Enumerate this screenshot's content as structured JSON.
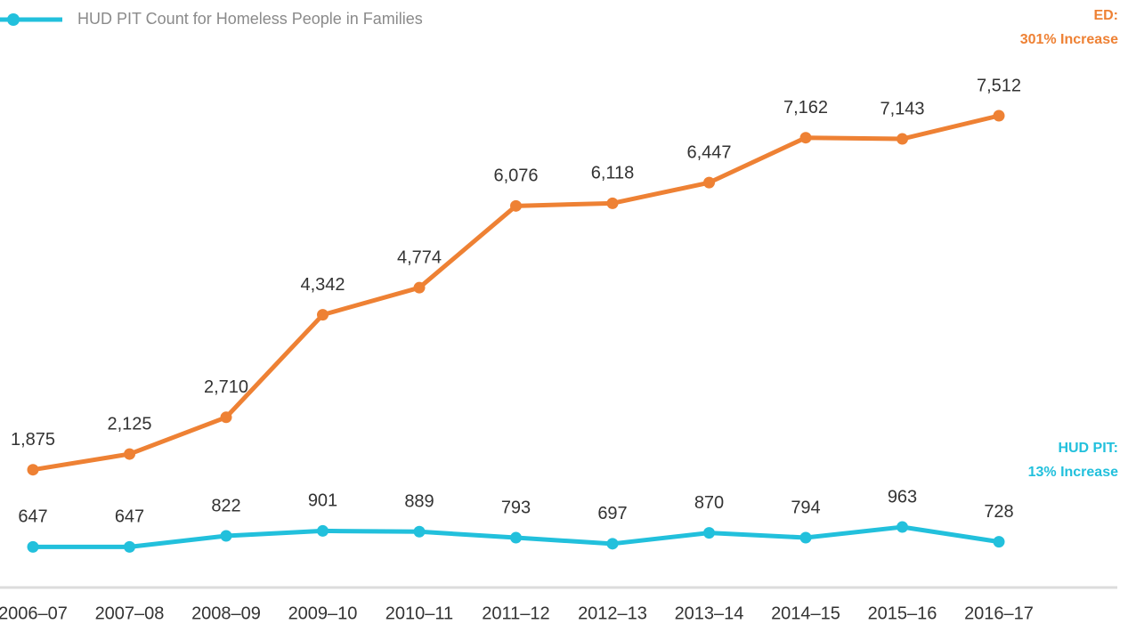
{
  "chart_data": {
    "type": "line",
    "categories": [
      "2006–07",
      "2007–08",
      "2008–09",
      "2009–10",
      "2010–11",
      "2011–12",
      "2012–13",
      "2013–14",
      "2014–15",
      "2015–16",
      "2016–17"
    ],
    "series": [
      {
        "color": "#ee8134",
        "values": [
          1875,
          2125,
          2710,
          4342,
          4774,
          6076,
          6118,
          6447,
          7162,
          7143,
          7512
        ],
        "value_labels": [
          "1,875",
          "2,125",
          "2,710",
          "4,342",
          "4,774",
          "6,076",
          "6,118",
          "6,447",
          "7,162",
          "7,143",
          "7,512"
        ]
      },
      {
        "name": "HUD PIT Count for Homeless People in Families",
        "color": "#22c0dc",
        "values": [
          647,
          647,
          822,
          901,
          889,
          793,
          697,
          870,
          794,
          963,
          728
        ]
      }
    ],
    "annotations": [
      {
        "title": "ED:",
        "text": "301% Increase"
      },
      {
        "title": "HUD PIT:",
        "text": "13% Increase"
      }
    ]
  }
}
